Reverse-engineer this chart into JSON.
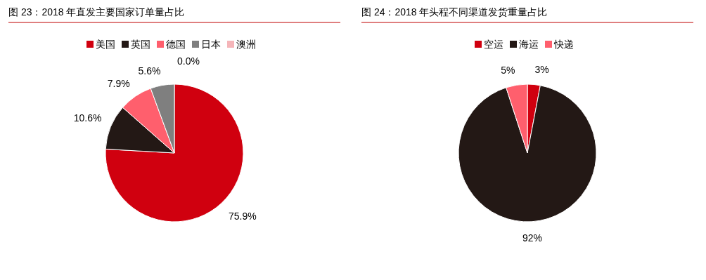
{
  "chart_data": [
    {
      "type": "pie",
      "title": "图 23：2018 年直发主要国家订单量占比",
      "categories": [
        "美国",
        "英国",
        "德国",
        "日本",
        "澳洲"
      ],
      "values": [
        75.9,
        10.6,
        7.9,
        5.6,
        0.0
      ],
      "colors": [
        "#d0000f",
        "#231815",
        "#ff5f6d",
        "#7f7f7f",
        "#f5b5b9"
      ],
      "value_labels": [
        "75.9%",
        "10.6%",
        "7.9%",
        "5.6%",
        "0.0%"
      ],
      "legend": "top"
    },
    {
      "type": "pie",
      "title": "图 24：2018 年头程不同渠道发货重量占比",
      "categories": [
        "空运",
        "海运",
        "快递"
      ],
      "values": [
        3,
        92,
        5
      ],
      "colors": [
        "#d0000f",
        "#231815",
        "#ff5f6d"
      ],
      "value_labels": [
        "3%",
        "92%",
        "5%"
      ],
      "legend": "top"
    }
  ]
}
